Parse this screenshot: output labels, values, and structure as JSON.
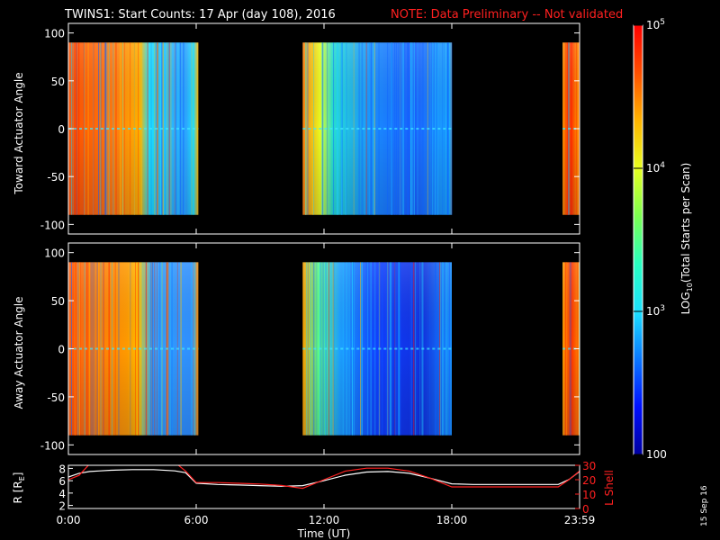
{
  "header": {
    "title": "TWINS1: Start Counts: 17 Apr (day 108), 2016",
    "note": "NOTE: Data Preliminary -- Not validated"
  },
  "colors": {
    "note": "#ff2020",
    "axis": "#ffffff",
    "r_line": "#ffffff",
    "l_shell_line": "#ff2020",
    "no_data": "#000000"
  },
  "footer": {
    "date_stamp": "15 Sep 16"
  },
  "chart_data": [
    {
      "type": "heatmap",
      "ylabel": "Toward Actuator Angle",
      "ylim": [
        -110,
        110
      ],
      "y_data_range": [
        -90,
        90
      ],
      "yticks": [
        -100,
        -50,
        0,
        50,
        100
      ],
      "xlim": [
        0,
        24
      ],
      "data_intervals_hours": [
        [
          0,
          6.1
        ],
        [
          11,
          18
        ],
        [
          23.2,
          24
        ]
      ],
      "grid": false
    },
    {
      "type": "heatmap",
      "ylabel": "Away Actuator Angle",
      "ylim": [
        -110,
        110
      ],
      "y_data_range": [
        -90,
        90
      ],
      "yticks": [
        -100,
        -50,
        0,
        50,
        100
      ],
      "xlim": [
        0,
        24
      ],
      "data_intervals_hours": [
        [
          0,
          6.1
        ],
        [
          11,
          18
        ],
        [
          23.2,
          24
        ]
      ],
      "grid": false
    },
    {
      "type": "line",
      "xlabel": "Time (UT)",
      "xlim": [
        0,
        24
      ],
      "x_tick_labels": [
        "0:00",
        "6:00",
        "12:00",
        "18:00",
        "23:59"
      ],
      "x_tick_hours": [
        0,
        6,
        12,
        18,
        24
      ],
      "left_axis": {
        "label": "R [R",
        "label_sub": "E",
        "label_end": "]",
        "ylim": [
          1.5,
          8.5
        ],
        "yticks": [
          2,
          4,
          6,
          8
        ]
      },
      "right_axis": {
        "label": "L Shell",
        "ylim": [
          0,
          30
        ],
        "yticks": [
          0,
          10,
          20,
          30
        ]
      },
      "series": [
        {
          "axis": "left",
          "x": [
            0,
            0.5,
            1,
            1.5,
            2,
            3,
            4,
            5,
            5.5,
            6,
            7,
            8,
            9,
            10,
            11,
            12,
            13,
            14,
            15,
            16,
            17,
            18,
            19,
            20,
            21,
            22,
            23,
            23.5,
            24
          ],
          "y": [
            6.6,
            7.2,
            7.5,
            7.6,
            7.7,
            7.8,
            7.8,
            7.6,
            7.3,
            5.6,
            5.4,
            5.3,
            5.2,
            5.1,
            5.2,
            6.0,
            6.9,
            7.4,
            7.5,
            7.2,
            6.4,
            5.5,
            5.4,
            5.4,
            5.4,
            5.4,
            5.4,
            6.2,
            7.5
          ]
        },
        {
          "axis": "right",
          "x": [
            0,
            0.5,
            1,
            5.0,
            5.5,
            6,
            7,
            8,
            9,
            10,
            11,
            12,
            13,
            14,
            15,
            16,
            17,
            18,
            19,
            20,
            21,
            22,
            23,
            23.5,
            24
          ],
          "y": [
            20,
            23,
            31,
            32,
            26,
            18,
            18,
            17.5,
            17,
            16,
            14,
            20,
            26,
            28,
            28,
            26,
            21,
            15,
            15,
            15,
            15,
            15,
            15,
            20,
            26
          ]
        }
      ]
    },
    {
      "type": "heatmap",
      "title": "",
      "colorbar_label_prefix": "LOG",
      "colorbar_label_sub": "10",
      "colorbar_label_suffix": "(Total Starts per Scan)",
      "scale": "log",
      "vlim": [
        100,
        100000
      ],
      "ticks": [
        {
          "value": 100000,
          "label_base": "10",
          "label_exp": "5"
        },
        {
          "value": 10000,
          "label_base": "10",
          "label_exp": "4"
        },
        {
          "value": 1000,
          "label_base": "10",
          "label_exp": "3"
        },
        {
          "value": 100,
          "label_base": "100",
          "label_exp": ""
        }
      ],
      "colors": [
        "#0000a0",
        "#0010ff",
        "#0a78ff",
        "#1ce0ff",
        "#28ffc0",
        "#7cff50",
        "#e8ff20",
        "#ffb400",
        "#ff5000",
        "#ff0000"
      ]
    }
  ]
}
